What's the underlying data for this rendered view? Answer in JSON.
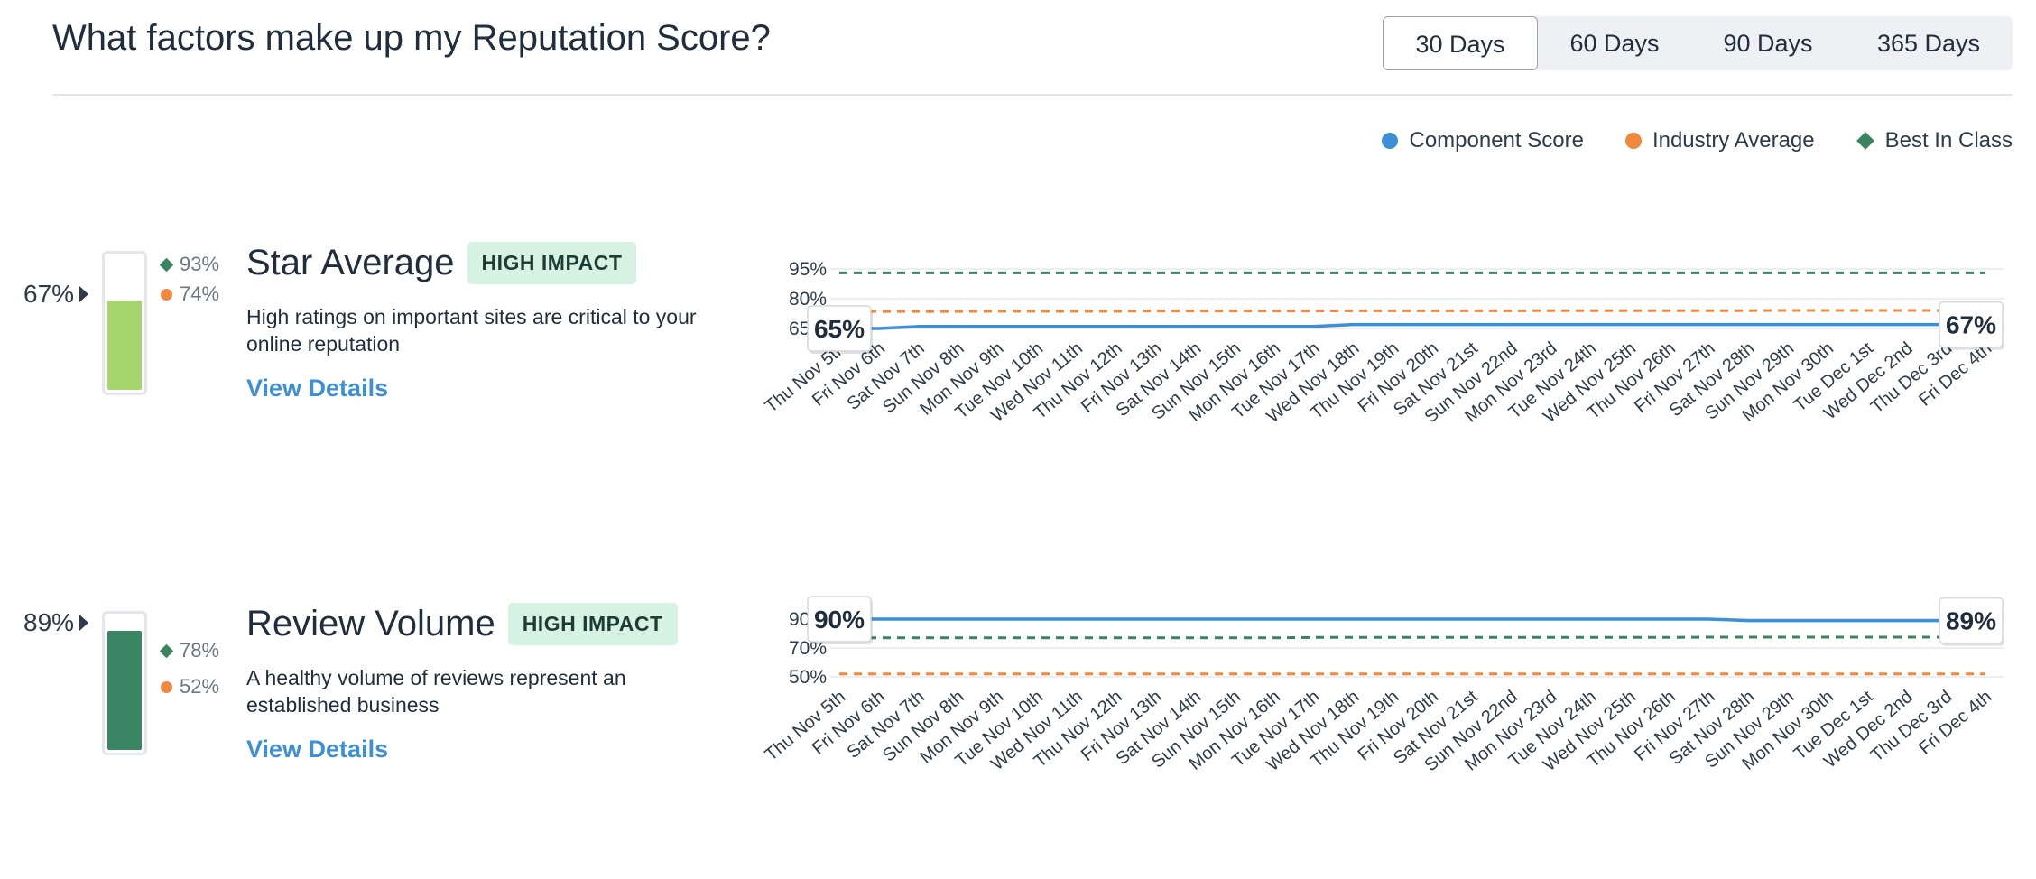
{
  "header": {
    "title": "What factors make up my Reputation Score?",
    "range_tabs": [
      "30 Days",
      "60 Days",
      "90 Days",
      "365 Days"
    ],
    "active_range": "30 Days"
  },
  "legend": {
    "component": "Component Score",
    "industry": "Industry Average",
    "best": "Best In Class"
  },
  "colors": {
    "component": "#3d8fd6",
    "industry": "#f0883e",
    "best": "#3a8560",
    "star_fill": "#a6d46d",
    "volume_fill": "#3a8563"
  },
  "metrics": [
    {
      "score_label": "67%",
      "score_value": 0.67,
      "best_label": "93%",
      "industry_label": "74%",
      "title": "Star Average",
      "badge": "HIGH IMPACT",
      "description": "High ratings on important sites are critical to your online reputation",
      "link": "View Details"
    },
    {
      "score_label": "89%",
      "score_value": 0.89,
      "best_label": "78%",
      "industry_label": "52%",
      "title": "Review Volume",
      "badge": "HIGH IMPACT",
      "description": "A healthy volume of reviews represent an established business",
      "link": "View Details"
    }
  ],
  "chart_data": [
    {
      "type": "line",
      "title": "",
      "x": [
        "Thu Nov 5th",
        "Fri Nov 6th",
        "Sat Nov 7th",
        "Sun Nov 8th",
        "Mon Nov 9th",
        "Tue Nov 10th",
        "Wed Nov 11th",
        "Thu Nov 12th",
        "Fri Nov 13th",
        "Sat Nov 14th",
        "Sun Nov 15th",
        "Mon Nov 16th",
        "Tue Nov 17th",
        "Wed Nov 18th",
        "Thu Nov 19th",
        "Fri Nov 20th",
        "Sat Nov 21st",
        "Sun Nov 22nd",
        "Mon Nov 23rd",
        "Tue Nov 24th",
        "Wed Nov 25th",
        "Thu Nov 26th",
        "Fri Nov 27th",
        "Sat Nov 28th",
        "Sun Nov 29th",
        "Mon Nov 30th",
        "Tue Dec 1st",
        "Wed Dec 2nd",
        "Thu Dec 3rd",
        "Fri Dec 4th"
      ],
      "yticks": [
        65,
        80,
        95
      ],
      "ytick_labels": [
        "65%",
        "80%",
        "95%"
      ],
      "ylim": [
        65,
        95
      ],
      "grid": true,
      "series": [
        {
          "name": "Component Score",
          "values": [
            65,
            65,
            66,
            66,
            66,
            66,
            66,
            66,
            66,
            66,
            66,
            66,
            66,
            67,
            67,
            67,
            67,
            67,
            67,
            67,
            67,
            67,
            67,
            67,
            67,
            67,
            67,
            67,
            67,
            67
          ]
        },
        {
          "name": "Industry Average",
          "values": [
            73.5,
            73.6,
            73.6,
            73.6,
            73.7,
            73.7,
            73.7,
            73.7,
            73.8,
            73.8,
            73.8,
            73.8,
            73.8,
            73.9,
            73.9,
            73.9,
            73.9,
            73.9,
            74,
            74,
            74,
            74,
            74,
            74,
            74.1,
            74.1,
            74.1,
            74.1,
            74.1,
            74.1
          ]
        },
        {
          "name": "Best In Class",
          "values": [
            93,
            93,
            93,
            93,
            93,
            93,
            93,
            93,
            93,
            93,
            93,
            93,
            93,
            93,
            93,
            93,
            93,
            93,
            93,
            93,
            93,
            93,
            93,
            93,
            93,
            93,
            93,
            93,
            93,
            93
          ]
        }
      ],
      "start_label": "65%",
      "end_label": "67%"
    },
    {
      "type": "line",
      "title": "",
      "x": [
        "Thu Nov 5th",
        "Fri Nov 6th",
        "Sat Nov 7th",
        "Sun Nov 8th",
        "Mon Nov 9th",
        "Tue Nov 10th",
        "Wed Nov 11th",
        "Thu Nov 12th",
        "Fri Nov 13th",
        "Sat Nov 14th",
        "Sun Nov 15th",
        "Mon Nov 16th",
        "Tue Nov 17th",
        "Wed Nov 18th",
        "Thu Nov 19th",
        "Fri Nov 20th",
        "Sat Nov 21st",
        "Sun Nov 22nd",
        "Mon Nov 23rd",
        "Tue Nov 24th",
        "Wed Nov 25th",
        "Thu Nov 26th",
        "Fri Nov 27th",
        "Sat Nov 28th",
        "Sun Nov 29th",
        "Mon Nov 30th",
        "Tue Dec 1st",
        "Wed Dec 2nd",
        "Thu Dec 3rd",
        "Fri Dec 4th"
      ],
      "yticks": [
        50,
        70,
        90
      ],
      "ytick_labels": [
        "50%",
        "70%",
        "90%"
      ],
      "ylim": [
        50,
        90
      ],
      "grid": true,
      "series": [
        {
          "name": "Component Score",
          "values": [
            90,
            90,
            90,
            90,
            90,
            90,
            90,
            90,
            90,
            90,
            90,
            90,
            90,
            90,
            90,
            90,
            90,
            90,
            90,
            90,
            90,
            90,
            90,
            89,
            89,
            89,
            89,
            89,
            89,
            89
          ]
        },
        {
          "name": "Industry Average",
          "values": [
            52,
            52,
            52,
            52,
            52,
            52,
            52,
            52,
            52,
            52,
            52,
            52,
            52,
            52,
            52,
            52,
            52,
            52,
            52,
            52,
            52,
            52,
            52,
            52,
            52,
            52,
            52,
            52,
            52,
            52
          ]
        },
        {
          "name": "Best In Class",
          "values": [
            77,
            77,
            77,
            77,
            77,
            77,
            77,
            77,
            77,
            77,
            77,
            77,
            77.3,
            77.3,
            77.3,
            77.3,
            77.3,
            77.3,
            77.3,
            77.3,
            77.3,
            77.3,
            77.5,
            77.5,
            77.5,
            77.5,
            77.5,
            77.5,
            77.5,
            77.5
          ]
        }
      ],
      "start_label": "90%",
      "end_label": "89%"
    }
  ]
}
